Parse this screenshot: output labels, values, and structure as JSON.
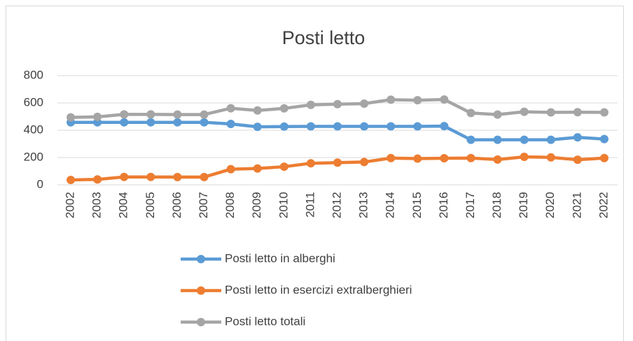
{
  "chart_data": {
    "type": "line",
    "title": "Posti letto",
    "categories": [
      "2002",
      "2003",
      "2004",
      "2005",
      "2006",
      "2007",
      "2008",
      "2009",
      "2010",
      "2011",
      "2012",
      "2013",
      "2014",
      "2015",
      "2016",
      "2017",
      "2018",
      "2019",
      "2020",
      "2021",
      "2022"
    ],
    "series": [
      {
        "name": "Posti letto in alberghi",
        "color": "#5b9bd5",
        "values": [
          458,
          458,
          458,
          458,
          458,
          458,
          446,
          425,
          427,
          428,
          428,
          428,
          428,
          428,
          430,
          330,
          330,
          330,
          330,
          348,
          335
        ]
      },
      {
        "name": "Posti letto in esercizi extralberghieri",
        "color": "#ed7d31",
        "values": [
          36,
          40,
          58,
          58,
          57,
          57,
          115,
          120,
          133,
          158,
          163,
          167,
          196,
          192,
          195,
          196,
          185,
          205,
          201,
          184,
          196
        ]
      },
      {
        "name": "Posti letto totali",
        "color": "#a5a5a5",
        "values": [
          494,
          498,
          516,
          516,
          515,
          515,
          561,
          545,
          560,
          586,
          591,
          595,
          624,
          620,
          625,
          526,
          515,
          535,
          531,
          532,
          531
        ]
      }
    ],
    "ylim": [
      0,
      800
    ],
    "yticks": [
      0,
      200,
      400,
      600,
      800
    ],
    "grid": true,
    "legend": "bottom"
  }
}
